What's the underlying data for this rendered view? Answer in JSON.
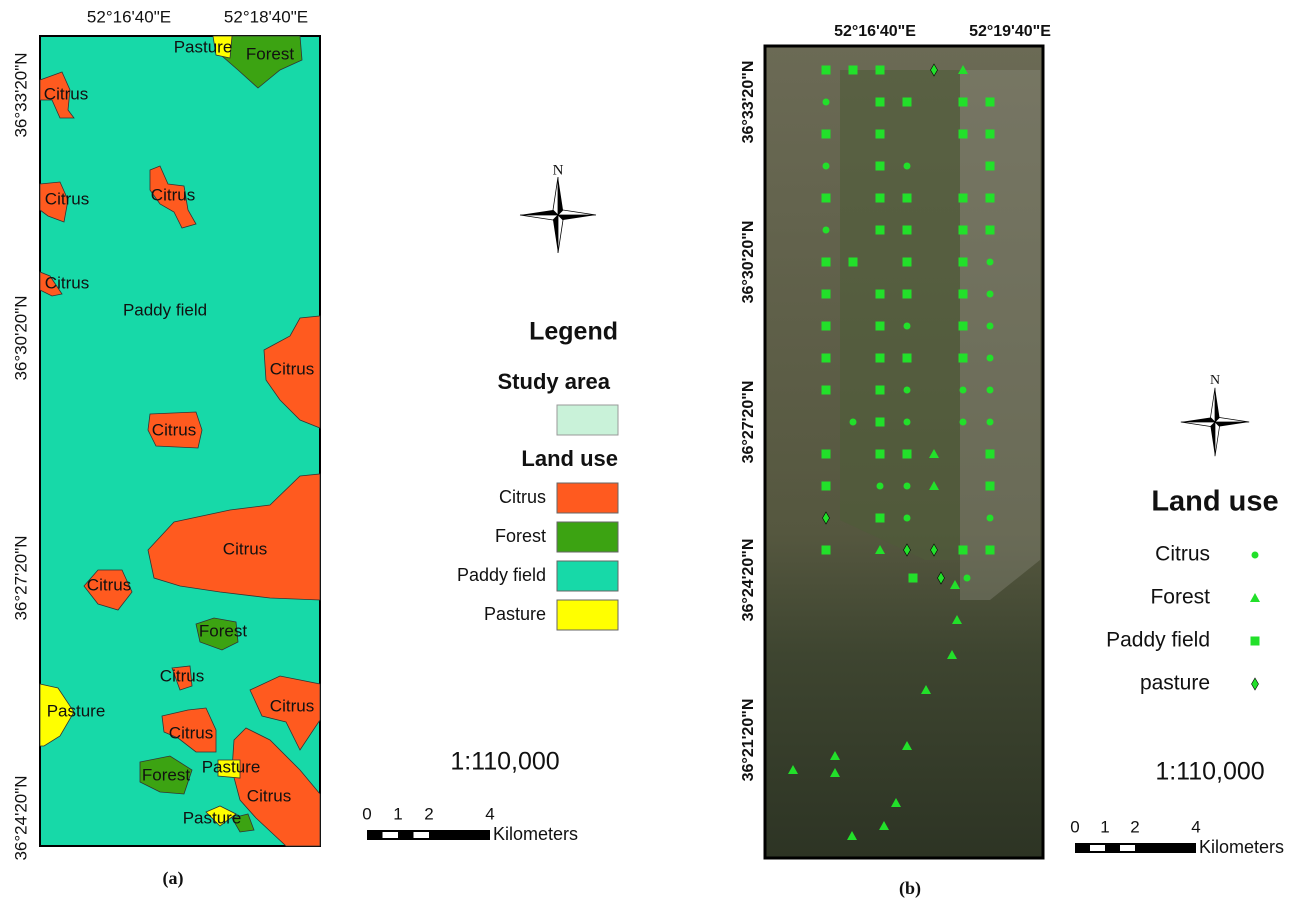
{
  "panel_a": {
    "caption": "(a)",
    "lon_labels": [
      "52°16'40\"E",
      "52°18'40\"E"
    ],
    "lat_labels": [
      "36°33'20\"N",
      "36°30'20\"N",
      "36°27'20\"N",
      "36°24'20\"N"
    ],
    "map_labels": [
      "Pasture",
      "Forest",
      "Citrus",
      "Citrus",
      "Citrus",
      "Citrus",
      "Paddy field",
      "Citrus",
      "Citrus",
      "Citrus",
      "Citrus",
      "Forest",
      "Citrus",
      "Pasture",
      "Citrus",
      "Citrus",
      "Pasture",
      "Forest",
      "Citrus",
      "Pasture"
    ],
    "legend": {
      "title": "Legend",
      "study_area": "Study area",
      "land_use": "Land use",
      "items": [
        "Citrus",
        "Forest",
        "Paddy field",
        "Pasture"
      ]
    },
    "north": "N",
    "scale": "1:110,000",
    "scale_ticks": [
      "0",
      "1",
      "2",
      "4"
    ],
    "scale_unit": "Kilometers"
  },
  "panel_b": {
    "caption": "(b)",
    "lon_labels": [
      "52°16'40\"E",
      "52°19'40\"E"
    ],
    "lat_labels": [
      "36°33'20\"N",
      "36°30'20\"N",
      "36°27'20\"N",
      "36°24'20\"N",
      "36°21'20\"N"
    ],
    "legend": {
      "title": "Land use",
      "items": [
        "Citrus",
        "Forest",
        "Paddy field",
        "pasture"
      ]
    },
    "north": "N",
    "scale": "1:110,000",
    "scale_ticks": [
      "0",
      "1",
      "2",
      "4"
    ],
    "scale_unit": "Kilometers"
  }
}
